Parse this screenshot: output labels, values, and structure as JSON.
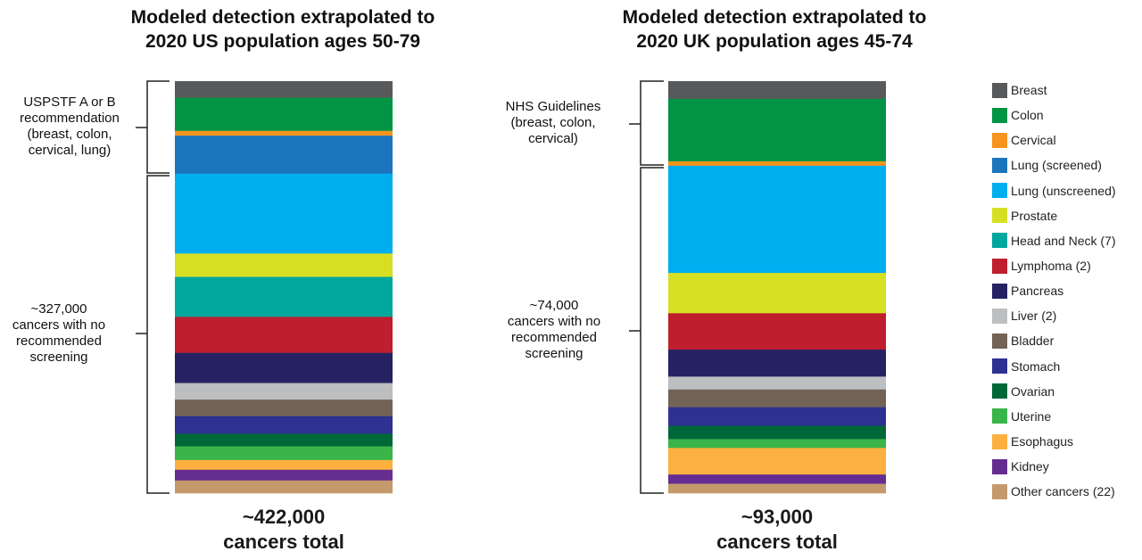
{
  "chart_data": [
    {
      "type": "bar",
      "stacked": true,
      "title": "Modeled detection extrapolated to 2020 US population ages 50-79",
      "title_lines": [
        "Modeled detection extrapolated to",
        "2020 US population ages 50-79"
      ],
      "total_label": [
        "~422,000",
        "cancers total"
      ],
      "groups": [
        {
          "label": [
            "USPSTF A or B",
            "recommendation",
            "(breast, colon,",
            "cervical, lung)"
          ],
          "members": [
            "Breast",
            "Colon",
            "Cervical",
            "Lung (screened)"
          ]
        },
        {
          "label": [
            "~327,000",
            "cancers with no",
            "recommended",
            "screening"
          ],
          "members": [
            "Lung (unscreened)",
            "Prostate",
            "Head and Neck (7)",
            "Lymphoma (2)",
            "Pancreas",
            "Liver (2)",
            "Bladder",
            "Stomach",
            "Ovarian",
            "Uterine",
            "Esophagus",
            "Kidney",
            "Other cancers (22)"
          ]
        }
      ],
      "series": [
        {
          "name": "Breast",
          "value": 17000
        },
        {
          "name": "Colon",
          "value": 34000
        },
        {
          "name": "Cervical",
          "value": 5000
        },
        {
          "name": "Lung (screened)",
          "value": 39000
        },
        {
          "name": "Lung (unscreened)",
          "value": 82000
        },
        {
          "name": "Prostate",
          "value": 24000
        },
        {
          "name": "Head and Neck (7)",
          "value": 41000
        },
        {
          "name": "Lymphoma (2)",
          "value": 37000
        },
        {
          "name": "Pancreas",
          "value": 31000
        },
        {
          "name": "Liver (2)",
          "value": 17000
        },
        {
          "name": "Bladder",
          "value": 17000
        },
        {
          "name": "Stomach",
          "value": 18000
        },
        {
          "name": "Ovarian",
          "value": 13000
        },
        {
          "name": "Uterine",
          "value": 14000
        },
        {
          "name": "Esophagus",
          "value": 10000
        },
        {
          "name": "Kidney",
          "value": 11000
        },
        {
          "name": "Other cancers (22)",
          "value": 13000
        }
      ]
    },
    {
      "type": "bar",
      "stacked": true,
      "title": "Modeled detection extrapolated to 2020 UK population ages 45-74",
      "title_lines": [
        "Modeled detection extrapolated to",
        "2020 UK population ages 45-74"
      ],
      "total_label": [
        "~93,000",
        "cancers total"
      ],
      "groups": [
        {
          "label": [
            "NHS Guidelines",
            "(breast, colon,",
            "cervical)"
          ],
          "members": [
            "Breast",
            "Colon",
            "Cervical"
          ]
        },
        {
          "label": [
            "~74,000",
            "cancers with no",
            "recommended",
            "screening"
          ],
          "members": [
            "Lung (unscreened)",
            "Prostate",
            "Lymphoma (2)",
            "Pancreas",
            "Liver (2)",
            "Bladder",
            "Stomach",
            "Ovarian",
            "Uterine",
            "Esophagus",
            "Kidney",
            "Other cancers (22)"
          ]
        }
      ],
      "series": [
        {
          "name": "Breast",
          "value": 4000
        },
        {
          "name": "Colon",
          "value": 14100
        },
        {
          "name": "Cervical",
          "value": 1000
        },
        {
          "name": "Lung (screened)",
          "value": 0
        },
        {
          "name": "Lung (unscreened)",
          "value": 24200
        },
        {
          "name": "Prostate",
          "value": 9100
        },
        {
          "name": "Head and Neck (7)",
          "value": 0
        },
        {
          "name": "Lymphoma (2)",
          "value": 8200
        },
        {
          "name": "Pancreas",
          "value": 6100
        },
        {
          "name": "Liver (2)",
          "value": 2900
        },
        {
          "name": "Bladder",
          "value": 4000
        },
        {
          "name": "Stomach",
          "value": 4200
        },
        {
          "name": "Ovarian",
          "value": 3000
        },
        {
          "name": "Uterine",
          "value": 2000
        },
        {
          "name": "Esophagus",
          "value": 6000
        },
        {
          "name": "Kidney",
          "value": 2100
        },
        {
          "name": "Other cancers (22)",
          "value": 2100
        }
      ]
    }
  ],
  "legend": {
    "placement": "right",
    "items": [
      {
        "label": "Breast",
        "color": "#58595b"
      },
      {
        "label": "Colon",
        "color": "#009444"
      },
      {
        "label": "Cervical",
        "color": "#f7941d"
      },
      {
        "label": "Lung (screened)",
        "color": "#1c75bc"
      },
      {
        "label": "Lung (unscreened)",
        "color": "#00aeef"
      },
      {
        "label": "Prostate",
        "color": "#d7df23"
      },
      {
        "label": "Head and Neck (7)",
        "color": "#00a79d"
      },
      {
        "label": "Lymphoma (2)",
        "color": "#be1e2d"
      },
      {
        "label": "Pancreas",
        "color": "#262262"
      },
      {
        "label": "Liver (2)",
        "color": "#bcbec0"
      },
      {
        "label": "Bladder",
        "color": "#736357"
      },
      {
        "label": "Stomach",
        "color": "#2e3192"
      },
      {
        "label": "Ovarian",
        "color": "#006838"
      },
      {
        "label": "Uterine",
        "color": "#39b54a"
      },
      {
        "label": "Esophagus",
        "color": "#fbb040"
      },
      {
        "label": "Kidney",
        "color": "#662d91"
      },
      {
        "label": "Other cancers (22)",
        "color": "#c49a6c"
      }
    ]
  }
}
